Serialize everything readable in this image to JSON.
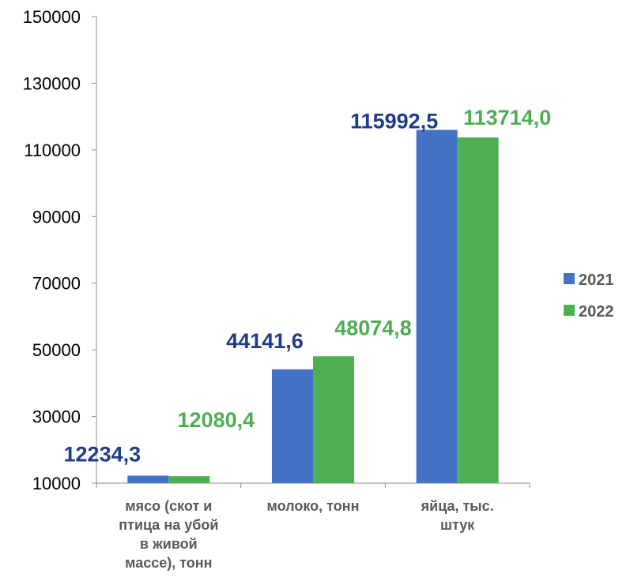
{
  "chart_data": {
    "type": "bar",
    "categories": [
      [
        "мясо (скот и",
        "птица на убой",
        "в живой",
        "массе), тонн"
      ],
      [
        "молоко, тонн"
      ],
      [
        "яйца, тыс.",
        "штук"
      ]
    ],
    "series": [
      {
        "name": "2021",
        "values": [
          12234.3,
          44141.6,
          115992.5
        ],
        "labels": [
          "12234,3",
          "44141,6",
          "115992,5"
        ],
        "color": "#4472C4",
        "label_color": "#1F3C88"
      },
      {
        "name": "2022",
        "values": [
          12080.4,
          48074.8,
          113714.0
        ],
        "labels": [
          "12080,4",
          "48074,8",
          "113714,0"
        ],
        "color": "#4EAE54",
        "label_color": "#4EAE54"
      }
    ],
    "ylim": [
      10000,
      150000
    ],
    "yticks": [
      "10000",
      "30000",
      "50000",
      "70000",
      "90000",
      "110000",
      "130000",
      "150000"
    ],
    "legend_position": "right",
    "grid": false
  }
}
